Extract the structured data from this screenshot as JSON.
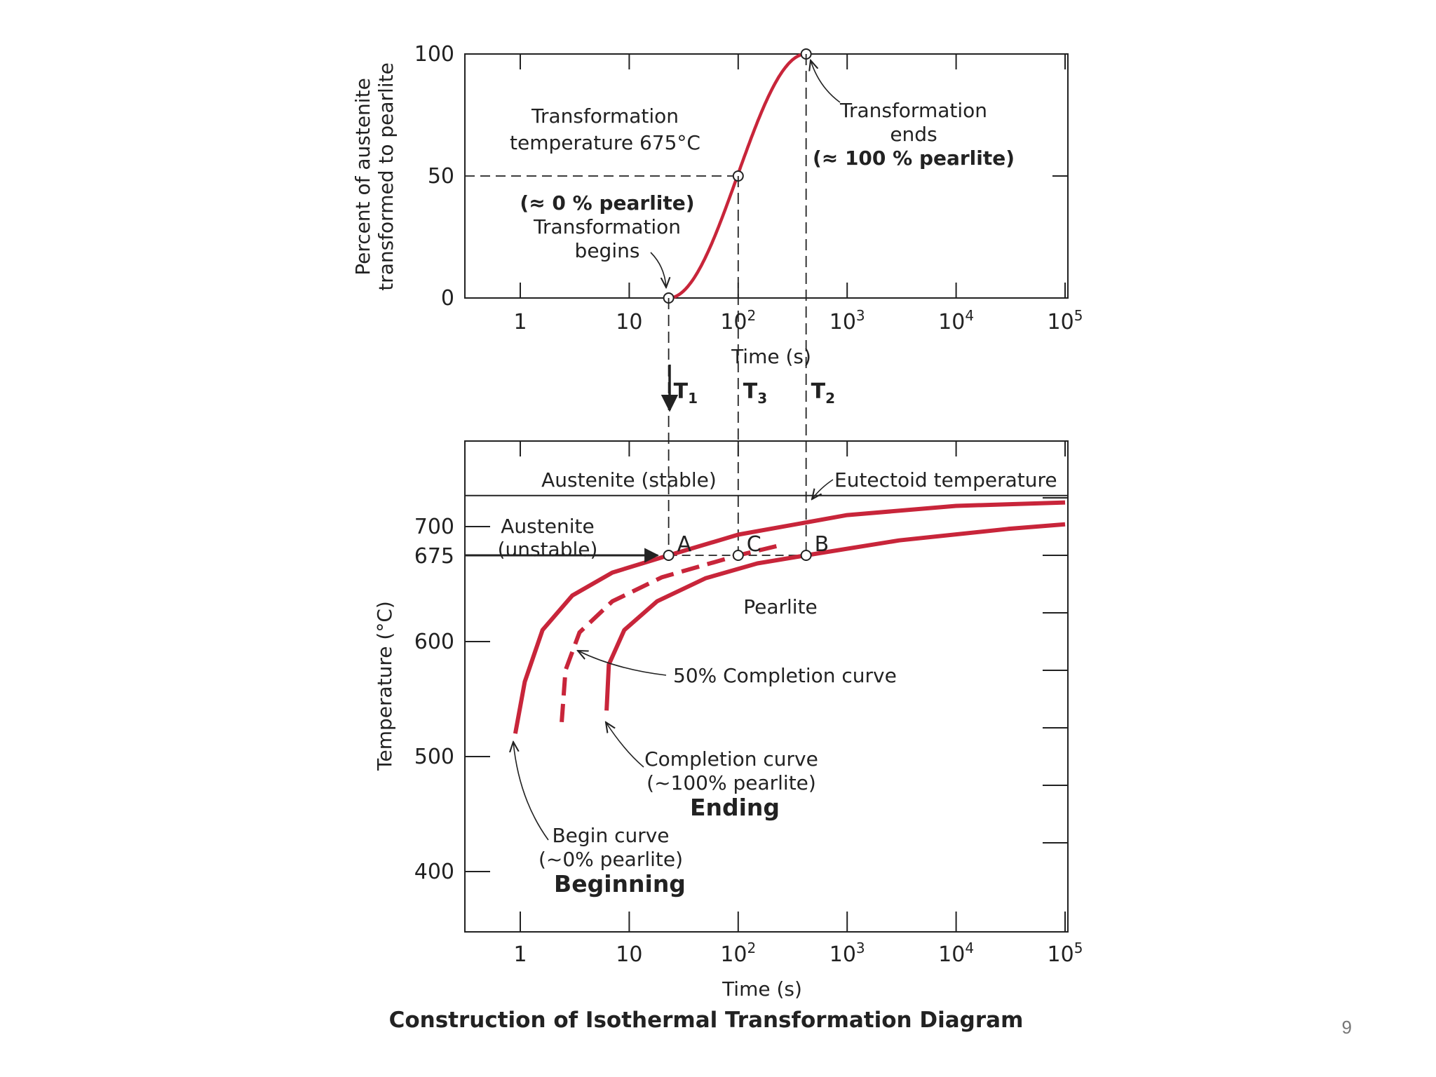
{
  "slide": {
    "page_number": "9"
  },
  "colors": {
    "curve": "#c8253a",
    "ink": "#222222",
    "highlight": "#c8253a"
  },
  "chart_data": [
    {
      "type": "line",
      "name": "transformation-curve-675C",
      "ylabel": [
        "Percent of austenite",
        "transformed to pearlite"
      ],
      "xlabel": "Time (s)",
      "xscale": "log",
      "xlim": [
        0.3,
        100000
      ],
      "ylim": [
        0,
        100
      ],
      "x_ticks": [
        {
          "value": 1,
          "base": "1",
          "exp": ""
        },
        {
          "value": 10,
          "base": "10",
          "exp": ""
        },
        {
          "value": 100,
          "base": "10",
          "exp": "2"
        },
        {
          "value": 1000,
          "base": "10",
          "exp": "3"
        },
        {
          "value": 10000,
          "base": "10",
          "exp": "4"
        },
        {
          "value": 100000,
          "base": "10",
          "exp": "5"
        }
      ],
      "y_ticks": [
        0,
        50,
        100
      ],
      "curve": {
        "start_time": 23,
        "end_time": 420,
        "midpoint": 100
      },
      "points": [
        {
          "label": "begins",
          "x": 23,
          "y": 0
        },
        {
          "label": "half",
          "x": 100,
          "y": 50
        },
        {
          "label": "ends",
          "x": 420,
          "y": 100
        }
      ],
      "annotations": {
        "temperature": [
          "Transformation",
          "temperature 675°C"
        ],
        "begins": [
          "(≈ 0 % pearlite)",
          "Transformation",
          "begins"
        ],
        "ends": [
          "Transformation",
          "ends",
          "(≈ 100 % pearlite)"
        ]
      }
    },
    {
      "type": "line",
      "name": "isothermal-transformation-diagram",
      "title": "Construction of Isothermal Transformation Diagram",
      "ylabel": "Temperature (°C)",
      "xlabel": "Time (s)",
      "xscale": "log",
      "xlim": [
        0.3,
        100000
      ],
      "ylim": [
        350,
        780
      ],
      "y_ticks": [
        400,
        500,
        600,
        700
      ],
      "highlight_temperature": "675",
      "eutectoid_temperature": 727,
      "time_markers": [
        {
          "label": "T",
          "sub": "1",
          "x": 23
        },
        {
          "label": "T",
          "sub": "3",
          "x": 100
        },
        {
          "label": "T",
          "sub": "2",
          "x": 420
        }
      ],
      "points": [
        {
          "label": "A",
          "x": 23,
          "y": 675
        },
        {
          "label": "C",
          "x": 100,
          "y": 675
        },
        {
          "label": "B",
          "x": 420,
          "y": 675
        }
      ],
      "series": [
        {
          "name": "Begin curve",
          "style": "solid",
          "x": [
            0.9,
            1.1,
            1.6,
            3,
            7,
            23,
            100,
            1000,
            10000,
            100000
          ],
          "y": [
            520,
            565,
            610,
            640,
            660,
            675,
            693,
            710,
            718,
            721
          ]
        },
        {
          "name": "50% Completion curve",
          "style": "dashed",
          "x": [
            2.4,
            2.6,
            3.5,
            7,
            20,
            100,
            250
          ],
          "y": [
            530,
            575,
            608,
            635,
            656,
            675,
            684
          ]
        },
        {
          "name": "Completion curve",
          "style": "solid",
          "x": [
            6.2,
            6.5,
            9,
            18,
            50,
            150,
            420,
            3000,
            30000,
            100000
          ],
          "y": [
            540,
            580,
            610,
            635,
            655,
            668,
            675,
            688,
            698,
            702
          ]
        }
      ],
      "labels": {
        "austenite_stable": "Austenite (stable)",
        "eutectoid": "Eutectoid temperature",
        "austenite_unstable": [
          "Austenite",
          "(unstable)"
        ],
        "pearlite": "Pearlite",
        "fifty_percent": "50% Completion curve",
        "completion": [
          "Completion curve",
          "(~100% pearlite)"
        ],
        "ending": "Ending",
        "begin": [
          "Begin curve",
          "(~0% pearlite)"
        ],
        "beginning": "Beginning"
      }
    }
  ]
}
